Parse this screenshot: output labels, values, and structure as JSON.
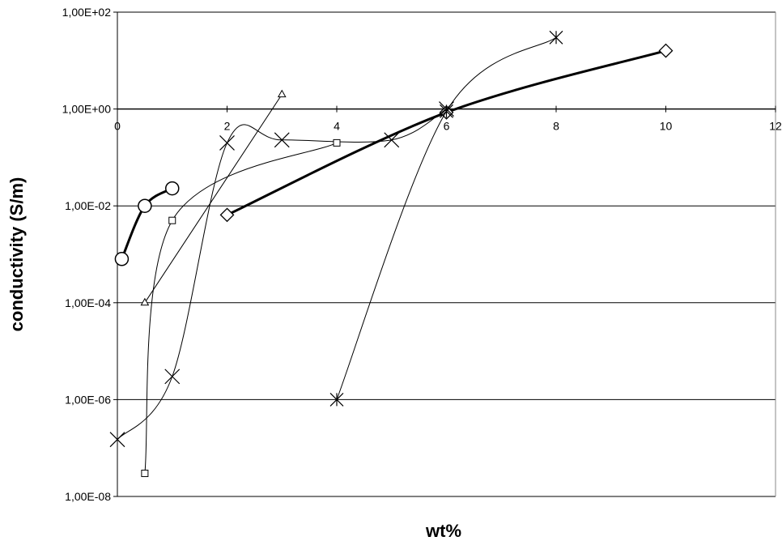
{
  "chart_data": {
    "type": "scatter",
    "title": "",
    "xlabel": "wt%",
    "ylabel": "conductivity (S/m)",
    "xlim": [
      0,
      12
    ],
    "ylim": [
      1e-08,
      100
    ],
    "y_scale": "log",
    "x_ticks": [
      "0",
      "2",
      "4",
      "6",
      "8",
      "10",
      "12"
    ],
    "y_ticks": [
      "1,00E-08",
      "1,00E-06",
      "1,00E-04",
      "1,00E-02",
      "1,00E+00",
      "1,00E+02"
    ],
    "grid": "horizontal",
    "legend": "none",
    "series": [
      {
        "marker": "circle",
        "line": "thick",
        "x": [
          0.08,
          0.5,
          1.0
        ],
        "y": [
          0.0008,
          0.01,
          0.023
        ]
      },
      {
        "marker": "diamond",
        "line": "thick",
        "x": [
          2,
          6,
          10
        ],
        "y": [
          0.0065,
          0.85,
          16
        ]
      },
      {
        "marker": "cross",
        "line": "thin",
        "x": [
          0,
          1,
          2,
          3,
          5,
          6
        ],
        "y": [
          1.5e-07,
          3e-06,
          0.2,
          0.23,
          0.23,
          1.0
        ]
      },
      {
        "marker": "square",
        "line": "thin",
        "x": [
          0.5,
          1.0,
          4.0
        ],
        "y": [
          3e-08,
          0.005,
          0.2
        ]
      },
      {
        "marker": "triangle",
        "line": "thin",
        "x": [
          0.5,
          3.0
        ],
        "y": [
          0.0001,
          2.0
        ]
      },
      {
        "marker": "asterisk",
        "line": "thin",
        "x": [
          4,
          6,
          8
        ],
        "y": [
          1e-06,
          0.9,
          30
        ]
      }
    ]
  }
}
